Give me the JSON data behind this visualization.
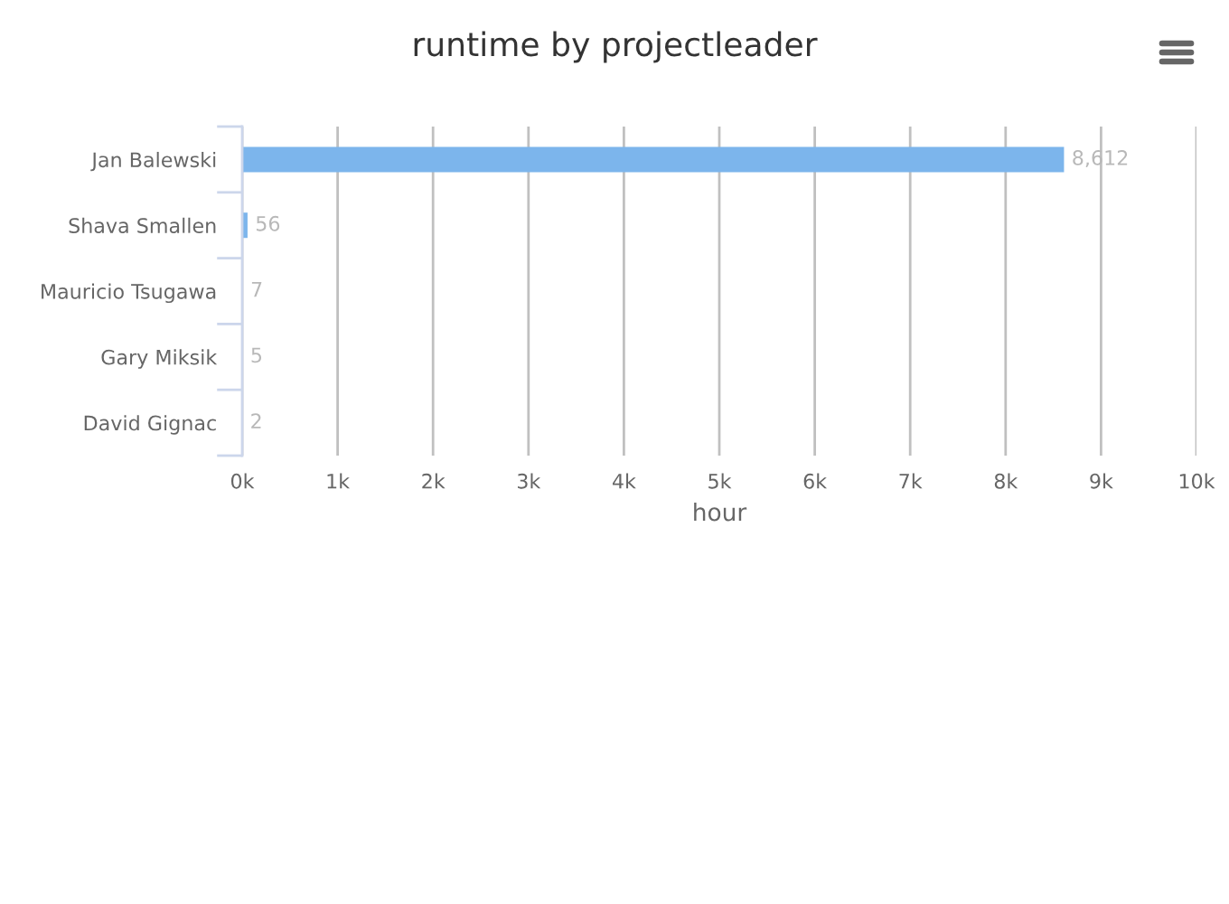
{
  "chart_data": {
    "type": "bar",
    "orientation": "horizontal",
    "title": "runtime by projectleader",
    "xlabel": "hour",
    "categories": [
      "Jan Balewski",
      "Shava Smallen",
      "Mauricio Tsugawa",
      "Gary Miksik",
      "David Gignac"
    ],
    "values": [
      8612,
      56,
      7,
      5,
      2
    ],
    "value_labels": [
      "8,612",
      "56",
      "7",
      "5",
      "2"
    ],
    "color": "#7cb5ec",
    "xlim": [
      0,
      10000
    ],
    "xticks": [
      {
        "value": 0,
        "label": "0k"
      },
      {
        "value": 1000,
        "label": "1k"
      },
      {
        "value": 2000,
        "label": "2k"
      },
      {
        "value": 3000,
        "label": "3k"
      },
      {
        "value": 4000,
        "label": "4k"
      },
      {
        "value": 5000,
        "label": "5k"
      },
      {
        "value": 6000,
        "label": "6k"
      },
      {
        "value": 7000,
        "label": "7k"
      },
      {
        "value": 8000,
        "label": "8k"
      },
      {
        "value": 9000,
        "label": "9k"
      },
      {
        "value": 10000,
        "label": "10k"
      }
    ],
    "grid": "x",
    "legend": false
  }
}
